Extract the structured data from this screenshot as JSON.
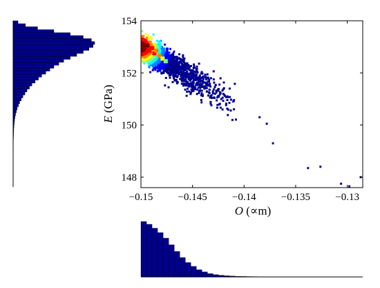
{
  "chart_data": {
    "type": "scatter",
    "style": "density-colored scatter with marginal histograms",
    "xlabel": "O (∝m)",
    "ylabel": "E (GPa)",
    "xlabel_var": "O",
    "xlabel_unit": " (∝m)",
    "ylabel_var": "E",
    "ylabel_unit": " (GPa)",
    "xlim": [
      -0.15,
      -0.1285
    ],
    "ylim": [
      147.6,
      154
    ],
    "xticks": [
      -0.15,
      -0.145,
      -0.14,
      -0.135,
      -0.13
    ],
    "xtick_labels": [
      "−0.15",
      "−0.145",
      "−0.14",
      "−0.135",
      "−0.13"
    ],
    "yticks": [
      148,
      150,
      152,
      154
    ],
    "ytick_labels": [
      "148",
      "150",
      "152",
      "154"
    ],
    "grid": false,
    "colormap": [
      "#00008f",
      "#0000ff",
      "#0080ff",
      "#00ffff",
      "#80ff80",
      "#ffff00",
      "#ff8000",
      "#ff0000",
      "#800000"
    ],
    "histogram_color": "#00008b",
    "core_points": [
      {
        "x": -0.1497,
        "y": 152.95,
        "density": 1.0
      },
      {
        "x": -0.1494,
        "y": 153.05,
        "density": 0.97
      },
      {
        "x": -0.1492,
        "y": 152.85,
        "density": 0.93
      },
      {
        "x": -0.1489,
        "y": 152.95,
        "density": 0.88
      },
      {
        "x": -0.1487,
        "y": 152.75,
        "density": 0.82
      },
      {
        "x": -0.1485,
        "y": 152.85,
        "density": 0.76
      },
      {
        "x": -0.1482,
        "y": 152.65,
        "density": 0.7
      },
      {
        "x": -0.1479,
        "y": 152.55,
        "density": 0.62
      },
      {
        "x": -0.1476,
        "y": 152.45,
        "density": 0.55
      }
    ],
    "outliers": [
      {
        "x": -0.1385,
        "y": 150.3
      },
      {
        "x": -0.1378,
        "y": 150.05
      },
      {
        "x": -0.1372,
        "y": 149.3
      },
      {
        "x": -0.1338,
        "y": 148.35
      },
      {
        "x": -0.1326,
        "y": 148.4
      },
      {
        "x": -0.1306,
        "y": 147.75
      },
      {
        "x": -0.1298,
        "y": 147.65
      },
      {
        "x": -0.1287,
        "y": 148.0
      }
    ],
    "hist_x": {
      "range": [
        -0.15,
        -0.1285
      ],
      "counts": [
        100,
        95,
        88,
        80,
        70,
        58,
        46,
        35,
        26,
        19,
        13,
        9,
        6,
        4,
        3,
        2,
        1.5,
        1,
        0.8,
        0.6,
        0.5,
        0.4,
        0.3,
        0.3,
        0.2,
        0.2,
        0.2,
        0.1,
        0.1,
        0.1,
        0.1,
        0.1,
        0.1,
        0.1,
        0.1,
        0.1,
        0.1,
        0.1,
        0.1,
        0.1
      ]
    },
    "hist_y": {
      "range": [
        147.6,
        154
      ],
      "counts": [
        0.1,
        0.1,
        0.1,
        0.1,
        0.1,
        0.1,
        0.1,
        0.1,
        0.1,
        0.1,
        0.1,
        0.1,
        0.2,
        0.2,
        0.3,
        0.3,
        0.4,
        0.5,
        0.6,
        0.8,
        1,
        1.3,
        1.7,
        2.2,
        3,
        4,
        5,
        6.5,
        8,
        10,
        12,
        14.5,
        17,
        20,
        23,
        27,
        31,
        35,
        40,
        45,
        50,
        56,
        62,
        70,
        78,
        86,
        93,
        98,
        100,
        96,
        86,
        70,
        50,
        30,
        15,
        6
      ]
    }
  }
}
